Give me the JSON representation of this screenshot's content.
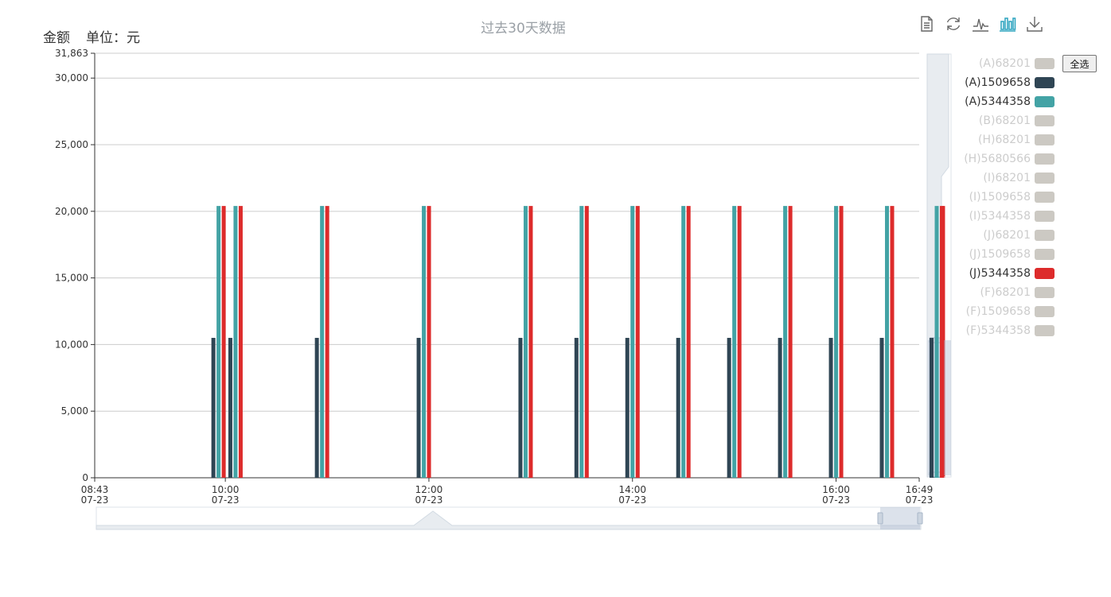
{
  "title": "过去30天数据",
  "units": {
    "amount_label": "金额",
    "unit_label": "单位：元"
  },
  "toolbox": [
    "data-view-icon",
    "refresh-icon",
    "line-chart-icon",
    "bar-chart-icon",
    "download-icon"
  ],
  "select_all_label": "全选",
  "legend": [
    {
      "name": "(A)68201",
      "active": false,
      "color": "#ccc9c3"
    },
    {
      "name": "(A)1509658",
      "active": true,
      "color": "#2f4554"
    },
    {
      "name": "(A)5344358",
      "active": true,
      "color": "#43a3a5"
    },
    {
      "name": "(B)68201",
      "active": false,
      "color": "#ccc9c3"
    },
    {
      "name": "(H)68201",
      "active": false,
      "color": "#ccc9c3"
    },
    {
      "name": "(H)5680566",
      "active": false,
      "color": "#ccc9c3"
    },
    {
      "name": "(I)68201",
      "active": false,
      "color": "#ccc9c3"
    },
    {
      "name": "(I)1509658",
      "active": false,
      "color": "#ccc9c3"
    },
    {
      "name": "(I)5344358",
      "active": false,
      "color": "#ccc9c3"
    },
    {
      "name": "(J)68201",
      "active": false,
      "color": "#ccc9c3"
    },
    {
      "name": "(J)1509658",
      "active": false,
      "color": "#ccc9c3"
    },
    {
      "name": "(J)5344358",
      "active": true,
      "color": "#dd2b2b"
    },
    {
      "name": "(F)68201",
      "active": false,
      "color": "#ccc9c3"
    },
    {
      "name": "(F)1509658",
      "active": false,
      "color": "#ccc9c3"
    },
    {
      "name": "(F)5344358",
      "active": false,
      "color": "#ccc9c3"
    }
  ],
  "chart_data": {
    "type": "bar",
    "x_range": [
      "08:43",
      "16:49"
    ],
    "x_ticks": [
      {
        "time": "08:43",
        "date": "07-23"
      },
      {
        "time": "10:00",
        "date": "07-23"
      },
      {
        "time": "12:00",
        "date": "07-23"
      },
      {
        "time": "14:00",
        "date": "07-23"
      },
      {
        "time": "16:00",
        "date": "07-23"
      },
      {
        "time": "16:49",
        "date": "07-23"
      }
    ],
    "y_ticks": [
      0,
      5000,
      10000,
      15000,
      20000,
      25000,
      30000
    ],
    "y_tick_labels": [
      "0",
      "5,000",
      "10,000",
      "15,000",
      "20,000",
      "25,000",
      "30,000"
    ],
    "y_max_label": "31,863",
    "ylim": [
      0,
      31863
    ],
    "grid": true,
    "legend_position": "right",
    "x": [
      "09:56",
      "10:06",
      "10:57",
      "11:57",
      "12:57",
      "13:30",
      "14:00",
      "14:30",
      "15:00",
      "15:30",
      "16:00",
      "16:30",
      "16:60"
    ],
    "series": [
      {
        "name": "(A)1509658",
        "color": "#2f4554",
        "values": [
          10500,
          10500,
          10500,
          10500,
          10500,
          10500,
          10500,
          10500,
          10500,
          10500,
          10500,
          10500,
          10500
        ]
      },
      {
        "name": "(A)5344358",
        "color": "#43a3a5",
        "values": [
          20400,
          20400,
          20400,
          20400,
          20400,
          20400,
          20400,
          20400,
          20400,
          20400,
          20400,
          20400,
          20400
        ]
      },
      {
        "name": "(J)5344358",
        "color": "#dd2b2b",
        "values": [
          20400,
          20400,
          20400,
          20400,
          20400,
          20400,
          20400,
          20400,
          20400,
          20400,
          20400,
          20400,
          20400
        ]
      }
    ]
  }
}
